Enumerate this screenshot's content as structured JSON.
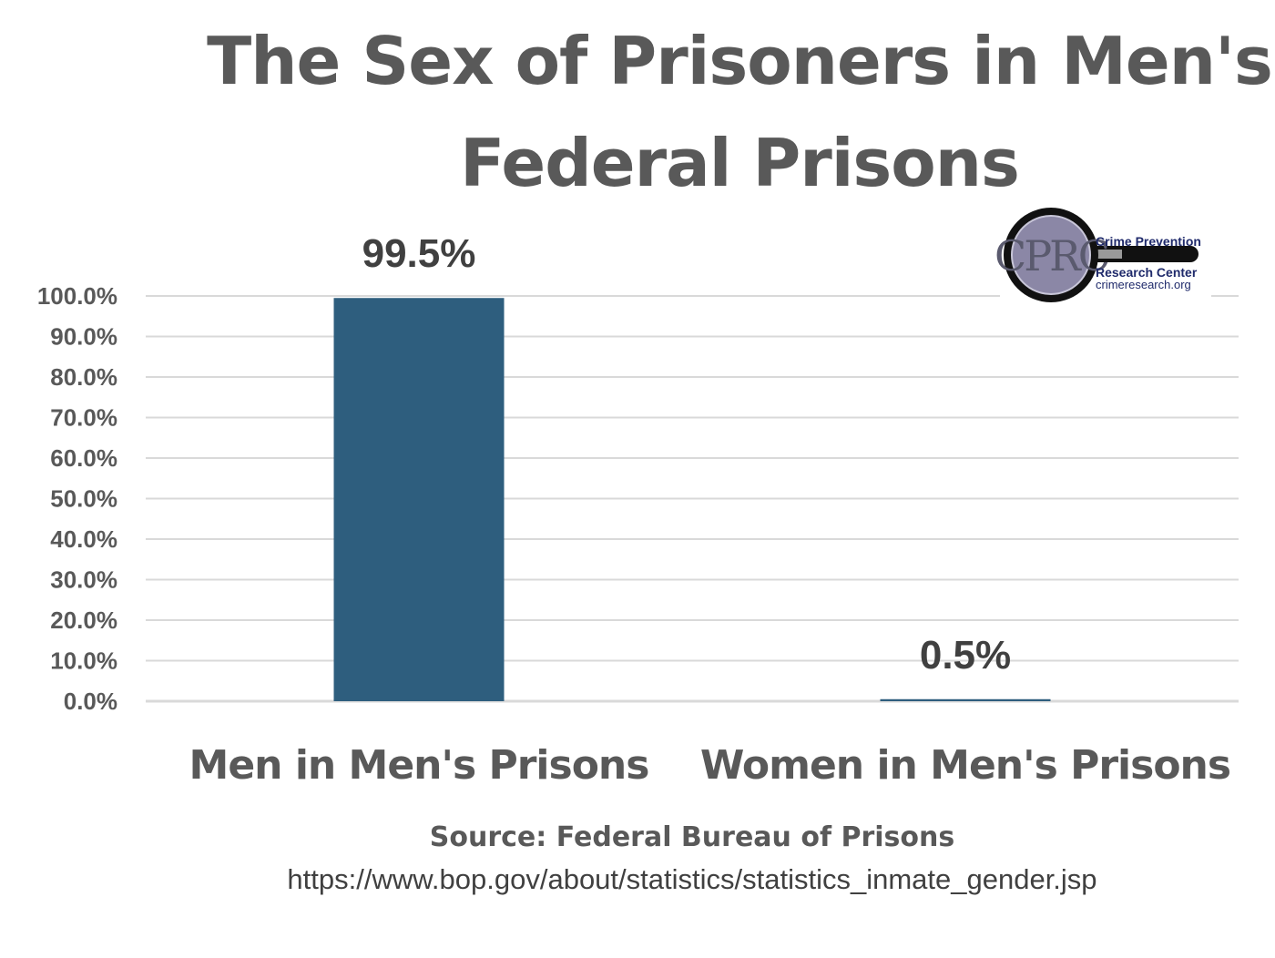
{
  "chart_data": {
    "type": "bar",
    "title": "The Sex of Prisoners in Men's Federal Prisons",
    "title_lines": [
      "The Sex of Prisoners in Men's",
      "Federal Prisons"
    ],
    "categories": [
      "Men in Men's Prisons",
      "Women in Men's Prisons"
    ],
    "values": [
      99.5,
      0.5
    ],
    "data_labels": [
      "99.5%",
      "0.5%"
    ],
    "ylim": [
      0,
      100
    ],
    "yticks": [
      0,
      10,
      20,
      30,
      40,
      50,
      60,
      70,
      80,
      90,
      100
    ],
    "ytick_labels": [
      "0.0%",
      "10.0%",
      "20.0%",
      "30.0%",
      "40.0%",
      "50.0%",
      "60.0%",
      "70.0%",
      "80.0%",
      "90.0%",
      "100.0%"
    ],
    "xlabel": "",
    "ylabel": "",
    "grid": true,
    "legend": "none",
    "bar_color": "#2e5e7e"
  },
  "source": {
    "label": "Source: Federal Bureau of Prisons",
    "url": "https://www.bop.gov/about/statistics/statistics_inmate_gender.jsp"
  },
  "logo": {
    "monogram": "CPRC",
    "line1": "Crime Prevention",
    "line2": "Research Center",
    "line3": "crimeresearch.org"
  },
  "colors": {
    "text": "#595959",
    "gridline": "#d9d9d9",
    "bar": "#2e5e7e"
  }
}
